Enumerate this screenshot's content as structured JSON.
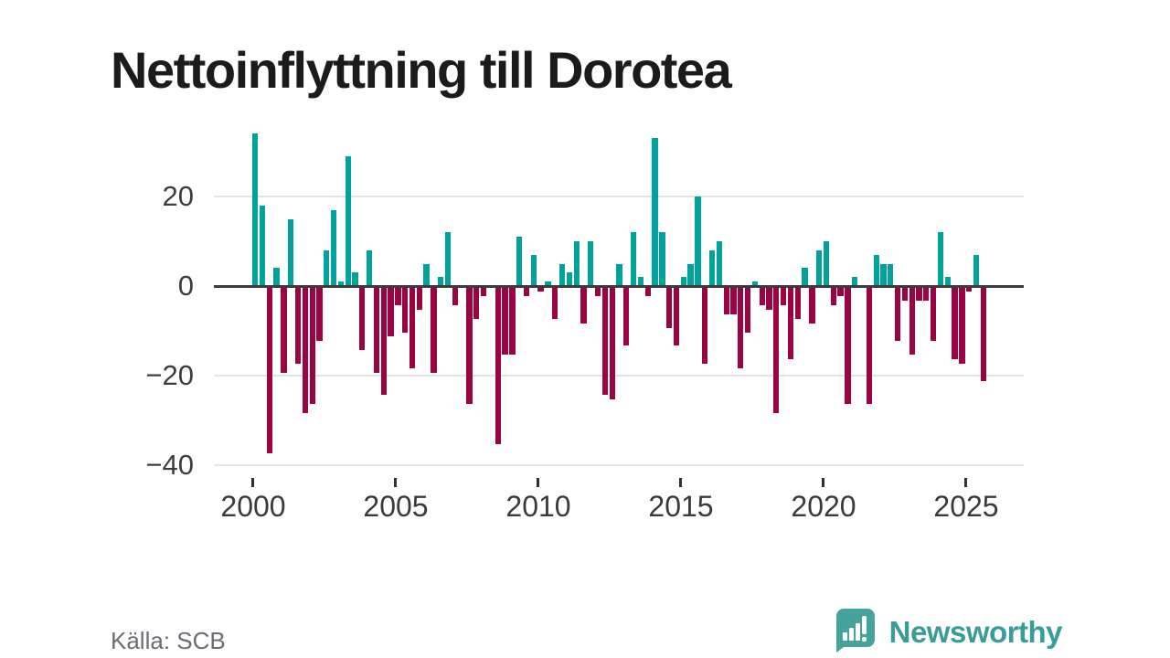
{
  "title": "Nettoinflyttning till Dorotea",
  "source": "Källa: SCB",
  "branding": {
    "name": "Newsworthy",
    "logo_icon": "speech-bubble-with-bar-chart-and-exclamation"
  },
  "colors": {
    "positive_bar": "#00a29b",
    "negative_bar": "#9b0343",
    "zero_line": "#3b3b3b",
    "grid": "#e3e3e3",
    "title_text": "#1b1b19",
    "axis_text": "#3a3a3a",
    "source_text": "#6c6c75",
    "logo": "#389d96"
  },
  "chart_data": {
    "type": "bar",
    "title": "Nettoinflyttning till Dorotea",
    "x_unit": "quarter",
    "start_period": "2000 Q1",
    "end_period": "2025 Q3",
    "x_tick_labels": [
      "2000",
      "2005",
      "2010",
      "2015",
      "2020",
      "2025"
    ],
    "y_tick_labels": [
      "20",
      "0",
      "−20",
      "−40"
    ],
    "y_tick_values": [
      20,
      0,
      -20,
      -40
    ],
    "ylim": [
      -40,
      36
    ],
    "grid": "horizontal-only",
    "legend": "none",
    "color_rule": "teal for values >= 0, dark red for values < 0",
    "series": [
      {
        "name": "Nettoinflyttning",
        "values_by_year": {
          "2000": [
            34,
            18,
            -37,
            4
          ],
          "2001": [
            -19,
            15,
            -17,
            -28
          ],
          "2002": [
            -26,
            -12,
            8,
            17
          ],
          "2003": [
            1,
            29,
            3,
            -14
          ],
          "2004": [
            8,
            -19,
            -24,
            -11
          ],
          "2005": [
            -4,
            -10,
            -18,
            -5
          ],
          "2006": [
            5,
            -19,
            2,
            12
          ],
          "2007": [
            -4,
            0,
            -26,
            -7
          ],
          "2008": [
            -2,
            0,
            -35,
            -15
          ],
          "2009": [
            -15,
            11,
            -2,
            7
          ],
          "2010": [
            -1,
            1,
            -7,
            5
          ],
          "2011": [
            3,
            10,
            -8,
            10
          ],
          "2012": [
            -2,
            -24,
            -25,
            5
          ],
          "2013": [
            -13,
            12,
            2,
            -2
          ],
          "2014": [
            33,
            12,
            -9,
            -13
          ],
          "2015": [
            2,
            5,
            20,
            -17
          ],
          "2016": [
            8,
            10,
            -6,
            -6
          ],
          "2017": [
            -18,
            -10,
            1,
            -4
          ],
          "2018": [
            -5,
            -28,
            -4,
            -16
          ],
          "2019": [
            -7,
            4,
            -8,
            8
          ],
          "2020": [
            10,
            -4,
            -2,
            -26
          ],
          "2021": [
            2,
            0,
            -26,
            7
          ],
          "2022": [
            5,
            5,
            -12,
            -3
          ],
          "2023": [
            -15,
            -3,
            -3,
            -12
          ],
          "2024": [
            12,
            2,
            -16,
            -17
          ],
          "2025": [
            -1,
            7,
            -21
          ]
        }
      }
    ]
  }
}
